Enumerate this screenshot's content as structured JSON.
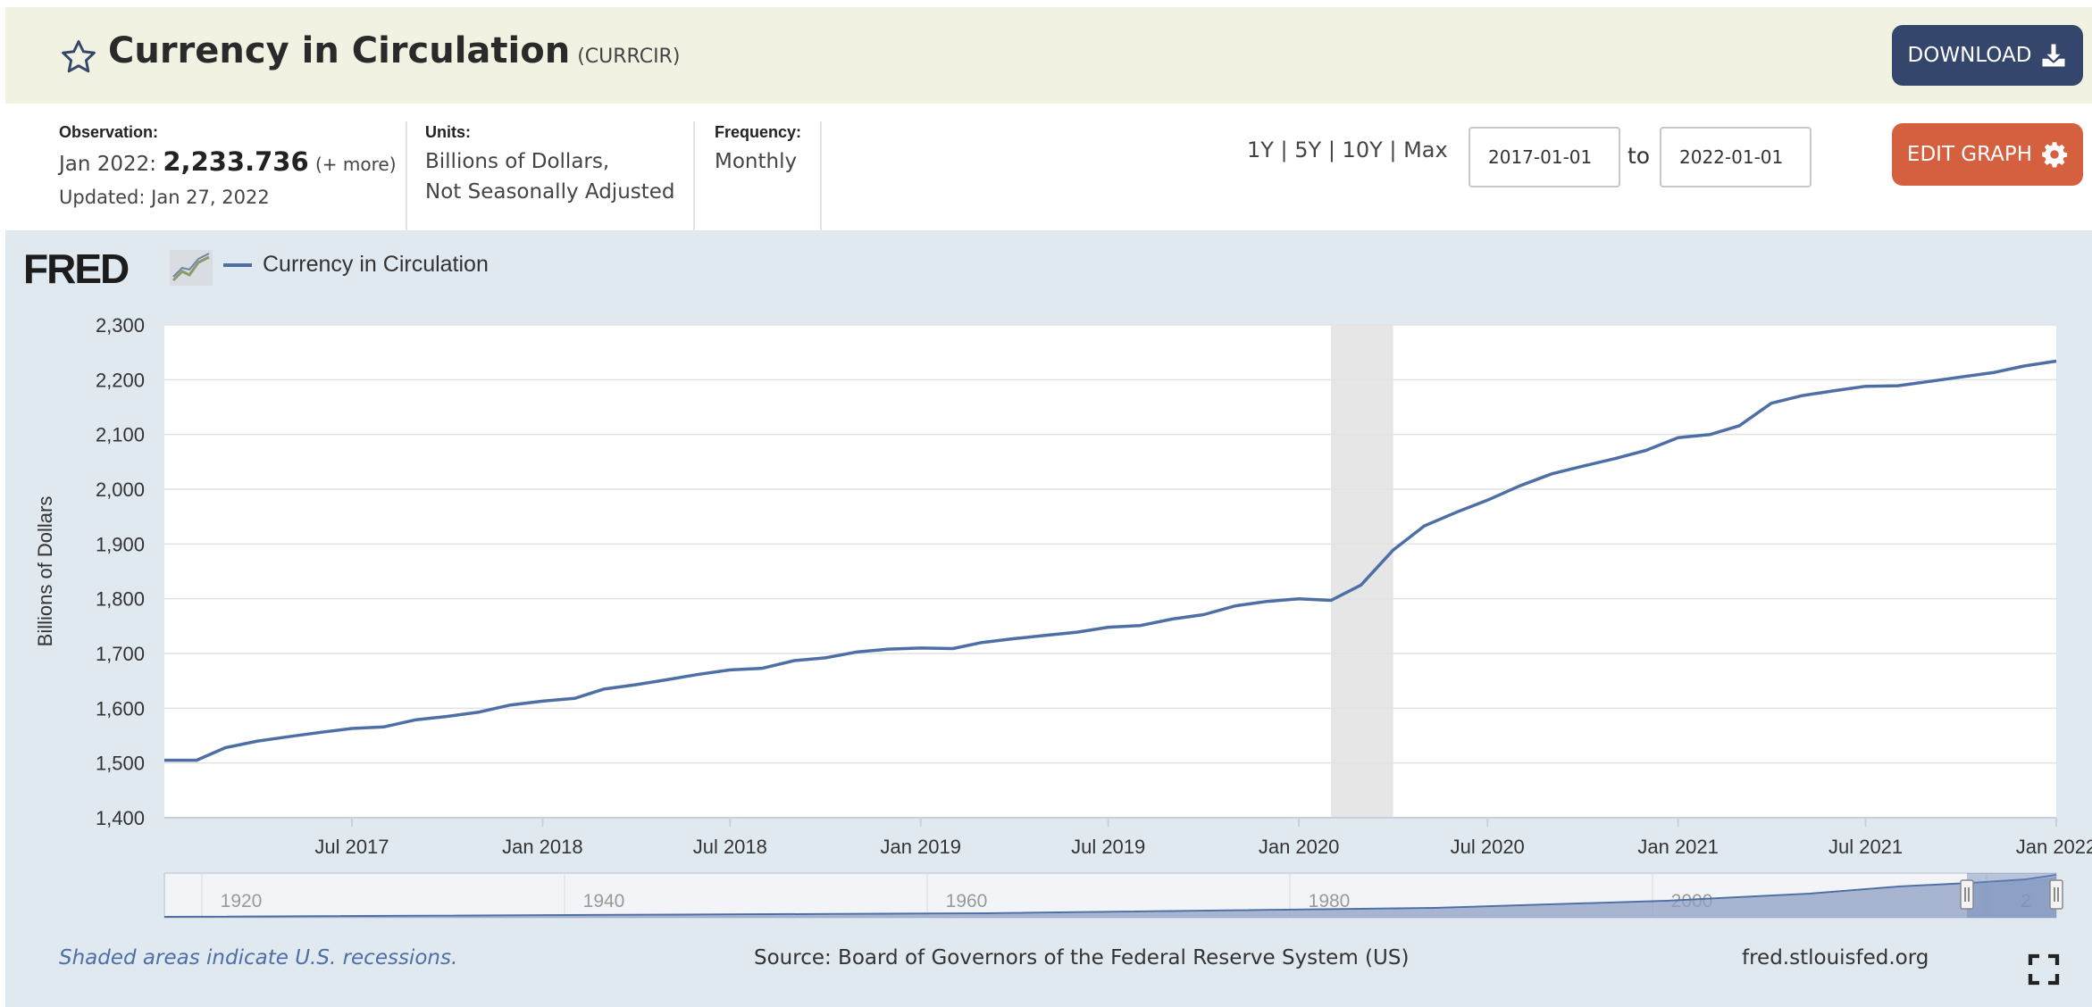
{
  "header": {
    "title": "Currency in Circulation",
    "series_id": "(CURRCIR)",
    "download_label": "DOWNLOAD"
  },
  "info": {
    "observation_label": "Observation:",
    "observation_date": "Jan 2022:",
    "observation_value": "2,233.736",
    "observation_more": "(+ more)",
    "updated": "Updated: Jan 27, 2022",
    "units_label": "Units:",
    "units_line1": "Billions of Dollars,",
    "units_line2": "Not Seasonally Adjusted",
    "frequency_label": "Frequency:",
    "frequency_value": "Monthly"
  },
  "controls": {
    "range_links": "1Y | 5Y | 10Y | Max",
    "start_date": "2017-01-01",
    "to_label": "to",
    "end_date": "2022-01-01",
    "edit_label": "EDIT GRAPH"
  },
  "panel": {
    "logo": "FRED",
    "legend_label": "Currency in Circulation",
    "recession_note": "Shaded areas indicate U.S. recessions.",
    "source": "Source: Board of Governors of the Federal Reserve System (US)",
    "site": "fred.stlouisfed.org"
  },
  "colors": {
    "line": "#4e6fa6",
    "recession": "#e6e6e6",
    "download": "#34466b",
    "edit": "#d4603f"
  },
  "chart_data": {
    "type": "line",
    "ylabel": "Billions of Dollars",
    "ylim": [
      1400,
      2300
    ],
    "yticks": [
      1400,
      1500,
      1600,
      1700,
      1800,
      1900,
      2000,
      2100,
      2200,
      2300
    ],
    "ytick_labels": [
      "1,400",
      "1,500",
      "1,600",
      "1,700",
      "1,800",
      "1,900",
      "2,000",
      "2,100",
      "2,200",
      "2,300"
    ],
    "xlim": [
      "2017-01-01",
      "2022-01-01"
    ],
    "xticks": [
      "2017-07-01",
      "2018-01-01",
      "2018-07-01",
      "2019-01-01",
      "2019-07-01",
      "2020-01-01",
      "2020-07-01",
      "2021-01-01",
      "2021-07-01",
      "2022-01-01"
    ],
    "xtick_labels": [
      "Jul 2017",
      "Jan 2018",
      "Jul 2018",
      "Jan 2019",
      "Jul 2019",
      "Jan 2020",
      "Jul 2020",
      "Jan 2021",
      "Jul 2021",
      "Jan 2022"
    ],
    "recessions": [
      {
        "start": "2020-02-01",
        "end": "2020-04-01"
      }
    ],
    "grid": true,
    "legend": "top-left",
    "series": [
      {
        "name": "Currency in Circulation",
        "x": [
          "2017-01-01",
          "2017-02-01",
          "2017-03-01",
          "2017-04-01",
          "2017-05-01",
          "2017-06-01",
          "2017-07-01",
          "2017-08-01",
          "2017-09-01",
          "2017-10-01",
          "2017-11-01",
          "2017-12-01",
          "2018-01-01",
          "2018-02-01",
          "2018-03-01",
          "2018-04-01",
          "2018-05-01",
          "2018-06-01",
          "2018-07-01",
          "2018-08-01",
          "2018-09-01",
          "2018-10-01",
          "2018-11-01",
          "2018-12-01",
          "2019-01-01",
          "2019-02-01",
          "2019-03-01",
          "2019-04-01",
          "2019-05-01",
          "2019-06-01",
          "2019-07-01",
          "2019-08-01",
          "2019-09-01",
          "2019-10-01",
          "2019-11-01",
          "2019-12-01",
          "2020-01-01",
          "2020-02-01",
          "2020-03-01",
          "2020-04-01",
          "2020-05-01",
          "2020-06-01",
          "2020-07-01",
          "2020-08-01",
          "2020-09-01",
          "2020-10-01",
          "2020-11-01",
          "2020-12-01",
          "2021-01-01",
          "2021-02-01",
          "2021-03-01",
          "2021-04-01",
          "2021-05-01",
          "2021-06-01",
          "2021-07-01",
          "2021-08-01",
          "2021-09-01",
          "2021-10-01",
          "2021-11-01",
          "2021-12-01",
          "2022-01-01"
        ],
        "values": [
          1505,
          1505,
          1528,
          1540,
          1548,
          1556,
          1563,
          1566,
          1579,
          1585,
          1593,
          1606,
          1613,
          1618,
          1635,
          1643,
          1652,
          1662,
          1670,
          1673,
          1687,
          1692,
          1703,
          1708,
          1710,
          1709,
          1720,
          1727,
          1733,
          1739,
          1748,
          1751,
          1763,
          1771,
          1787,
          1795,
          1800,
          1797,
          1825,
          1889,
          1933,
          1958,
          1980,
          2006,
          2028,
          2042,
          2056,
          2071,
          2094,
          2100,
          2116,
          2157,
          2171,
          2180,
          2188,
          2189,
          2197,
          2205,
          2213,
          2225,
          2234
        ]
      }
    ],
    "navigator": {
      "tick_labels": [
        "1920",
        "1940",
        "1960",
        "1980",
        "2000",
        "2"
      ]
    }
  }
}
